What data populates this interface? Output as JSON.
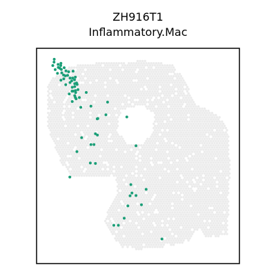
{
  "chart_data": {
    "type": "scatter",
    "title": "ZH916T1",
    "subtitle": "Inflammatory.Mac",
    "xlabel": "",
    "ylabel": "",
    "axes_visible": false,
    "grid": false,
    "legend": "none",
    "background_spot_color": "#ebebeb",
    "highlight_color": "#1a9e77",
    "series": [
      {
        "values": [
          [
            8.7,
            94.9
          ],
          [
            8.6,
            93.6
          ],
          [
            12.0,
            93.0
          ],
          [
            10.6,
            92.5
          ],
          [
            11.9,
            92.0
          ],
          [
            8.0,
            92.0
          ],
          [
            10.7,
            91.1
          ],
          [
            13.6,
            91.0
          ],
          [
            11.5,
            90.7
          ],
          [
            12.2,
            90.2
          ],
          [
            9.2,
            90.1
          ],
          [
            14.5,
            89.5
          ],
          [
            18.0,
            89.4
          ],
          [
            15.8,
            89.1
          ],
          [
            12.4,
            88.6
          ],
          [
            10.3,
            88.4
          ],
          [
            13.3,
            87.6
          ],
          [
            15.3,
            87.4
          ],
          [
            14.2,
            87.2
          ],
          [
            19.1,
            86.6
          ],
          [
            17.8,
            86.2
          ],
          [
            16.5,
            86.2
          ],
          [
            13.4,
            85.8
          ],
          [
            18.7,
            85.4
          ],
          [
            12.0,
            85.2
          ],
          [
            17.3,
            84.9
          ],
          [
            16.5,
            84.1
          ],
          [
            19.7,
            83.9
          ],
          [
            18.8,
            83.6
          ],
          [
            20.0,
            83.2
          ],
          [
            14.4,
            83.1
          ],
          [
            18.8,
            82.2
          ],
          [
            17.6,
            81.9
          ],
          [
            20.4,
            80.8
          ],
          [
            19.2,
            80.4
          ],
          [
            17.5,
            80.1
          ],
          [
            18.0,
            80.1
          ],
          [
            19.3,
            79.4
          ],
          [
            16.1,
            78.8
          ],
          [
            24.5,
            79.5
          ],
          [
            18.8,
            78.0
          ],
          [
            19.1,
            77.1
          ],
          [
            21.1,
            77.1
          ],
          [
            19.5,
            76.5
          ],
          [
            17.6,
            75.3
          ],
          [
            21.8,
            72.6
          ],
          [
            26.8,
            73.1
          ],
          [
            35.0,
            75.0
          ],
          [
            44.5,
            68.1
          ],
          [
            34.2,
            69.1
          ],
          [
            30.2,
            67.4
          ],
          [
            29.9,
            67.2
          ],
          [
            29.0,
            60.3
          ],
          [
            30.0,
            59.7
          ],
          [
            22.2,
            58.5
          ],
          [
            28.3,
            55.3
          ],
          [
            26.8,
            55.3
          ],
          [
            19.9,
            52.0
          ],
          [
            26.5,
            46.7
          ],
          [
            29.0,
            46.5
          ],
          [
            16.4,
            40.2
          ],
          [
            49.0,
            54.7
          ],
          [
            46.5,
            36.7
          ],
          [
            46.1,
            31.5
          ],
          [
            47.0,
            32.8
          ],
          [
            54.0,
            34.5
          ],
          [
            49.0,
            31.6
          ],
          [
            45.0,
            26.8
          ],
          [
            51.7,
            27.3
          ],
          [
            43.2,
            21.1
          ],
          [
            38.1,
            17.8
          ],
          [
            40.3,
            17.8
          ],
          [
            61.8,
            11.4
          ]
        ]
      }
    ],
    "xlim": [
      0,
      100
    ],
    "ylim": [
      0,
      100
    ]
  }
}
